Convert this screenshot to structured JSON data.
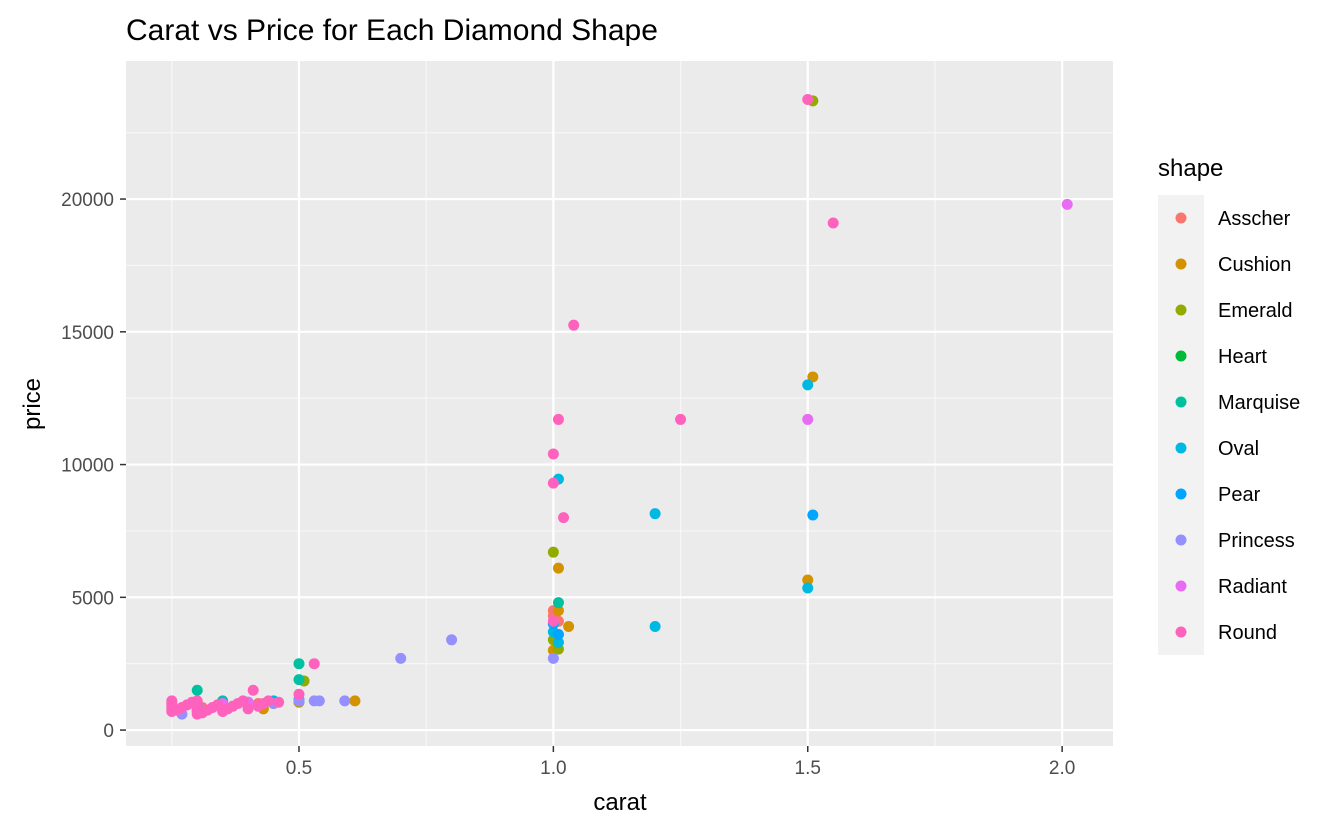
{
  "chart_data": {
    "type": "scatter",
    "title": "Carat vs Price for Each Diamond Shape",
    "xlabel": "carat",
    "ylabel": "price",
    "xlim": [
      0.16,
      2.1
    ],
    "ylim": [
      -600,
      25200
    ],
    "x_ticks": [
      0.5,
      1.0,
      1.5,
      2.0
    ],
    "x_tick_labels": [
      "0.5",
      "1.0",
      "1.5",
      "2.0"
    ],
    "x_minor_ticks": [
      0.25,
      0.75,
      1.25,
      1.75
    ],
    "y_ticks": [
      0,
      5000,
      10000,
      15000,
      20000
    ],
    "y_tick_labels": [
      "0",
      "5000",
      "10000",
      "15000",
      "20000"
    ],
    "y_minor_ticks": [
      2500,
      7500,
      12500,
      17500,
      22500
    ],
    "grid": true,
    "legend": {
      "title": "shape",
      "position": "right"
    },
    "series": [
      {
        "name": "Asscher",
        "color": "#F8766D",
        "points": [
          [
            0.3,
            800
          ],
          [
            0.31,
            850
          ],
          [
            0.35,
            900
          ],
          [
            0.4,
            950
          ],
          [
            0.42,
            1000
          ],
          [
            1.0,
            4500
          ],
          [
            1.0,
            4300
          ],
          [
            1.01,
            4100
          ]
        ]
      },
      {
        "name": "Cushion",
        "color": "#D39200",
        "points": [
          [
            0.3,
            850
          ],
          [
            0.35,
            900
          ],
          [
            0.4,
            950
          ],
          [
            0.43,
            800
          ],
          [
            0.45,
            1000
          ],
          [
            0.5,
            1050
          ],
          [
            0.61,
            1100
          ],
          [
            1.0,
            3000
          ],
          [
            1.01,
            4500
          ],
          [
            1.01,
            6100
          ],
          [
            1.03,
            3900
          ],
          [
            1.5,
            5650
          ],
          [
            1.51,
            13300
          ]
        ]
      },
      {
        "name": "Emerald",
        "color": "#93AA00",
        "points": [
          [
            0.3,
            900
          ],
          [
            0.35,
            950
          ],
          [
            0.4,
            1000
          ],
          [
            0.45,
            1050
          ],
          [
            0.5,
            1100
          ],
          [
            0.51,
            1850
          ],
          [
            1.0,
            6700
          ],
          [
            1.0,
            3400
          ],
          [
            1.01,
            3050
          ],
          [
            1.51,
            23700
          ]
        ]
      },
      {
        "name": "Heart",
        "color": "#00BA38",
        "points": [
          [
            0.3,
            900
          ],
          [
            0.35,
            1000
          ],
          [
            0.4,
            950
          ],
          [
            0.45,
            1050
          ]
        ]
      },
      {
        "name": "Marquise",
        "color": "#00C19F",
        "points": [
          [
            0.3,
            1500
          ],
          [
            0.35,
            1100
          ],
          [
            0.4,
            1000
          ],
          [
            0.45,
            1050
          ],
          [
            0.5,
            2500
          ],
          [
            0.5,
            1900
          ],
          [
            1.01,
            4800
          ]
        ]
      },
      {
        "name": "Oval",
        "color": "#00B9E3",
        "points": [
          [
            0.3,
            950
          ],
          [
            0.35,
            1000
          ],
          [
            0.4,
            1050
          ],
          [
            0.45,
            1100
          ],
          [
            0.5,
            1100
          ],
          [
            1.0,
            3700
          ],
          [
            1.01,
            3300
          ],
          [
            1.01,
            9450
          ],
          [
            1.2,
            8150
          ],
          [
            1.2,
            3900
          ],
          [
            1.5,
            5350
          ],
          [
            1.5,
            13000
          ]
        ]
      },
      {
        "name": "Pear",
        "color": "#00A5FF",
        "points": [
          [
            0.3,
            900
          ],
          [
            0.35,
            950
          ],
          [
            0.4,
            1000
          ],
          [
            0.45,
            1050
          ],
          [
            0.5,
            1150
          ],
          [
            1.0,
            4000
          ],
          [
            1.01,
            3600
          ],
          [
            1.51,
            8100
          ]
        ]
      },
      {
        "name": "Princess",
        "color": "#9590FF",
        "points": [
          [
            0.27,
            600
          ],
          [
            0.3,
            700
          ],
          [
            0.35,
            800
          ],
          [
            0.4,
            850
          ],
          [
            0.45,
            1000
          ],
          [
            0.5,
            1100
          ],
          [
            0.53,
            1100
          ],
          [
            0.54,
            1100
          ],
          [
            0.59,
            1100
          ],
          [
            0.7,
            2700
          ],
          [
            0.8,
            3400
          ],
          [
            1.0,
            2700
          ]
        ]
      },
      {
        "name": "Radiant",
        "color": "#E76BF3",
        "points": [
          [
            0.3,
            950
          ],
          [
            0.35,
            1000
          ],
          [
            0.4,
            1050
          ],
          [
            1.5,
            11700
          ],
          [
            2.01,
            19800
          ]
        ]
      },
      {
        "name": "Round",
        "color": "#FF62BC",
        "points": [
          [
            0.25,
            700
          ],
          [
            0.25,
            800
          ],
          [
            0.25,
            900
          ],
          [
            0.25,
            1000
          ],
          [
            0.25,
            1100
          ],
          [
            0.26,
            750
          ],
          [
            0.27,
            850
          ],
          [
            0.28,
            950
          ],
          [
            0.29,
            1050
          ],
          [
            0.3,
            600
          ],
          [
            0.3,
            700
          ],
          [
            0.3,
            800
          ],
          [
            0.3,
            900
          ],
          [
            0.3,
            1000
          ],
          [
            0.3,
            1100
          ],
          [
            0.31,
            650
          ],
          [
            0.32,
            750
          ],
          [
            0.33,
            850
          ],
          [
            0.34,
            950
          ],
          [
            0.35,
            700
          ],
          [
            0.36,
            800
          ],
          [
            0.37,
            900
          ],
          [
            0.38,
            1000
          ],
          [
            0.39,
            1100
          ],
          [
            0.4,
            800
          ],
          [
            0.41,
            1500
          ],
          [
            0.42,
            900
          ],
          [
            0.43,
            1000
          ],
          [
            0.44,
            1100
          ],
          [
            0.46,
            1050
          ],
          [
            0.5,
            1350
          ],
          [
            0.53,
            2500
          ],
          [
            1.0,
            10400
          ],
          [
            1.0,
            9300
          ],
          [
            1.0,
            4100
          ],
          [
            1.01,
            11700
          ],
          [
            1.02,
            8000
          ],
          [
            1.04,
            15250
          ],
          [
            1.25,
            11700
          ],
          [
            1.5,
            23750
          ],
          [
            1.55,
            19100
          ]
        ]
      }
    ]
  }
}
